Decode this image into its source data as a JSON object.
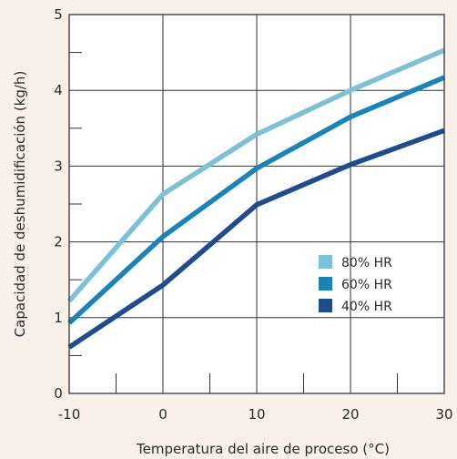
{
  "chart_data": {
    "type": "line",
    "xlabel": "Temperatura del aire de proceso (°C)",
    "ylabel": "Capacidad de deshumidificación (kg/h)",
    "xlim": [
      -10,
      30
    ],
    "ylim": [
      0,
      5
    ],
    "x_ticks": [
      "-10",
      "0",
      "10",
      "20",
      "30"
    ],
    "y_ticks": [
      "0",
      "1",
      "2",
      "3",
      "4",
      "5"
    ],
    "grid": true,
    "legend_position": "lower-right",
    "series": [
      {
        "name": "80% HR",
        "color": "#7bc2d6",
        "x": [
          -10,
          0,
          10,
          20,
          30
        ],
        "y": [
          1.22,
          2.63,
          3.42,
          4.0,
          4.53
        ]
      },
      {
        "name": "60% HR",
        "color": "#1a84b8",
        "x": [
          -10,
          0,
          10,
          20,
          30
        ],
        "y": [
          0.93,
          2.07,
          2.97,
          3.65,
          4.17
        ]
      },
      {
        "name": "40% HR",
        "color": "#1f4c8c",
        "x": [
          -10,
          0,
          10,
          20,
          30
        ],
        "y": [
          0.61,
          1.43,
          2.49,
          3.02,
          3.47
        ]
      }
    ]
  }
}
